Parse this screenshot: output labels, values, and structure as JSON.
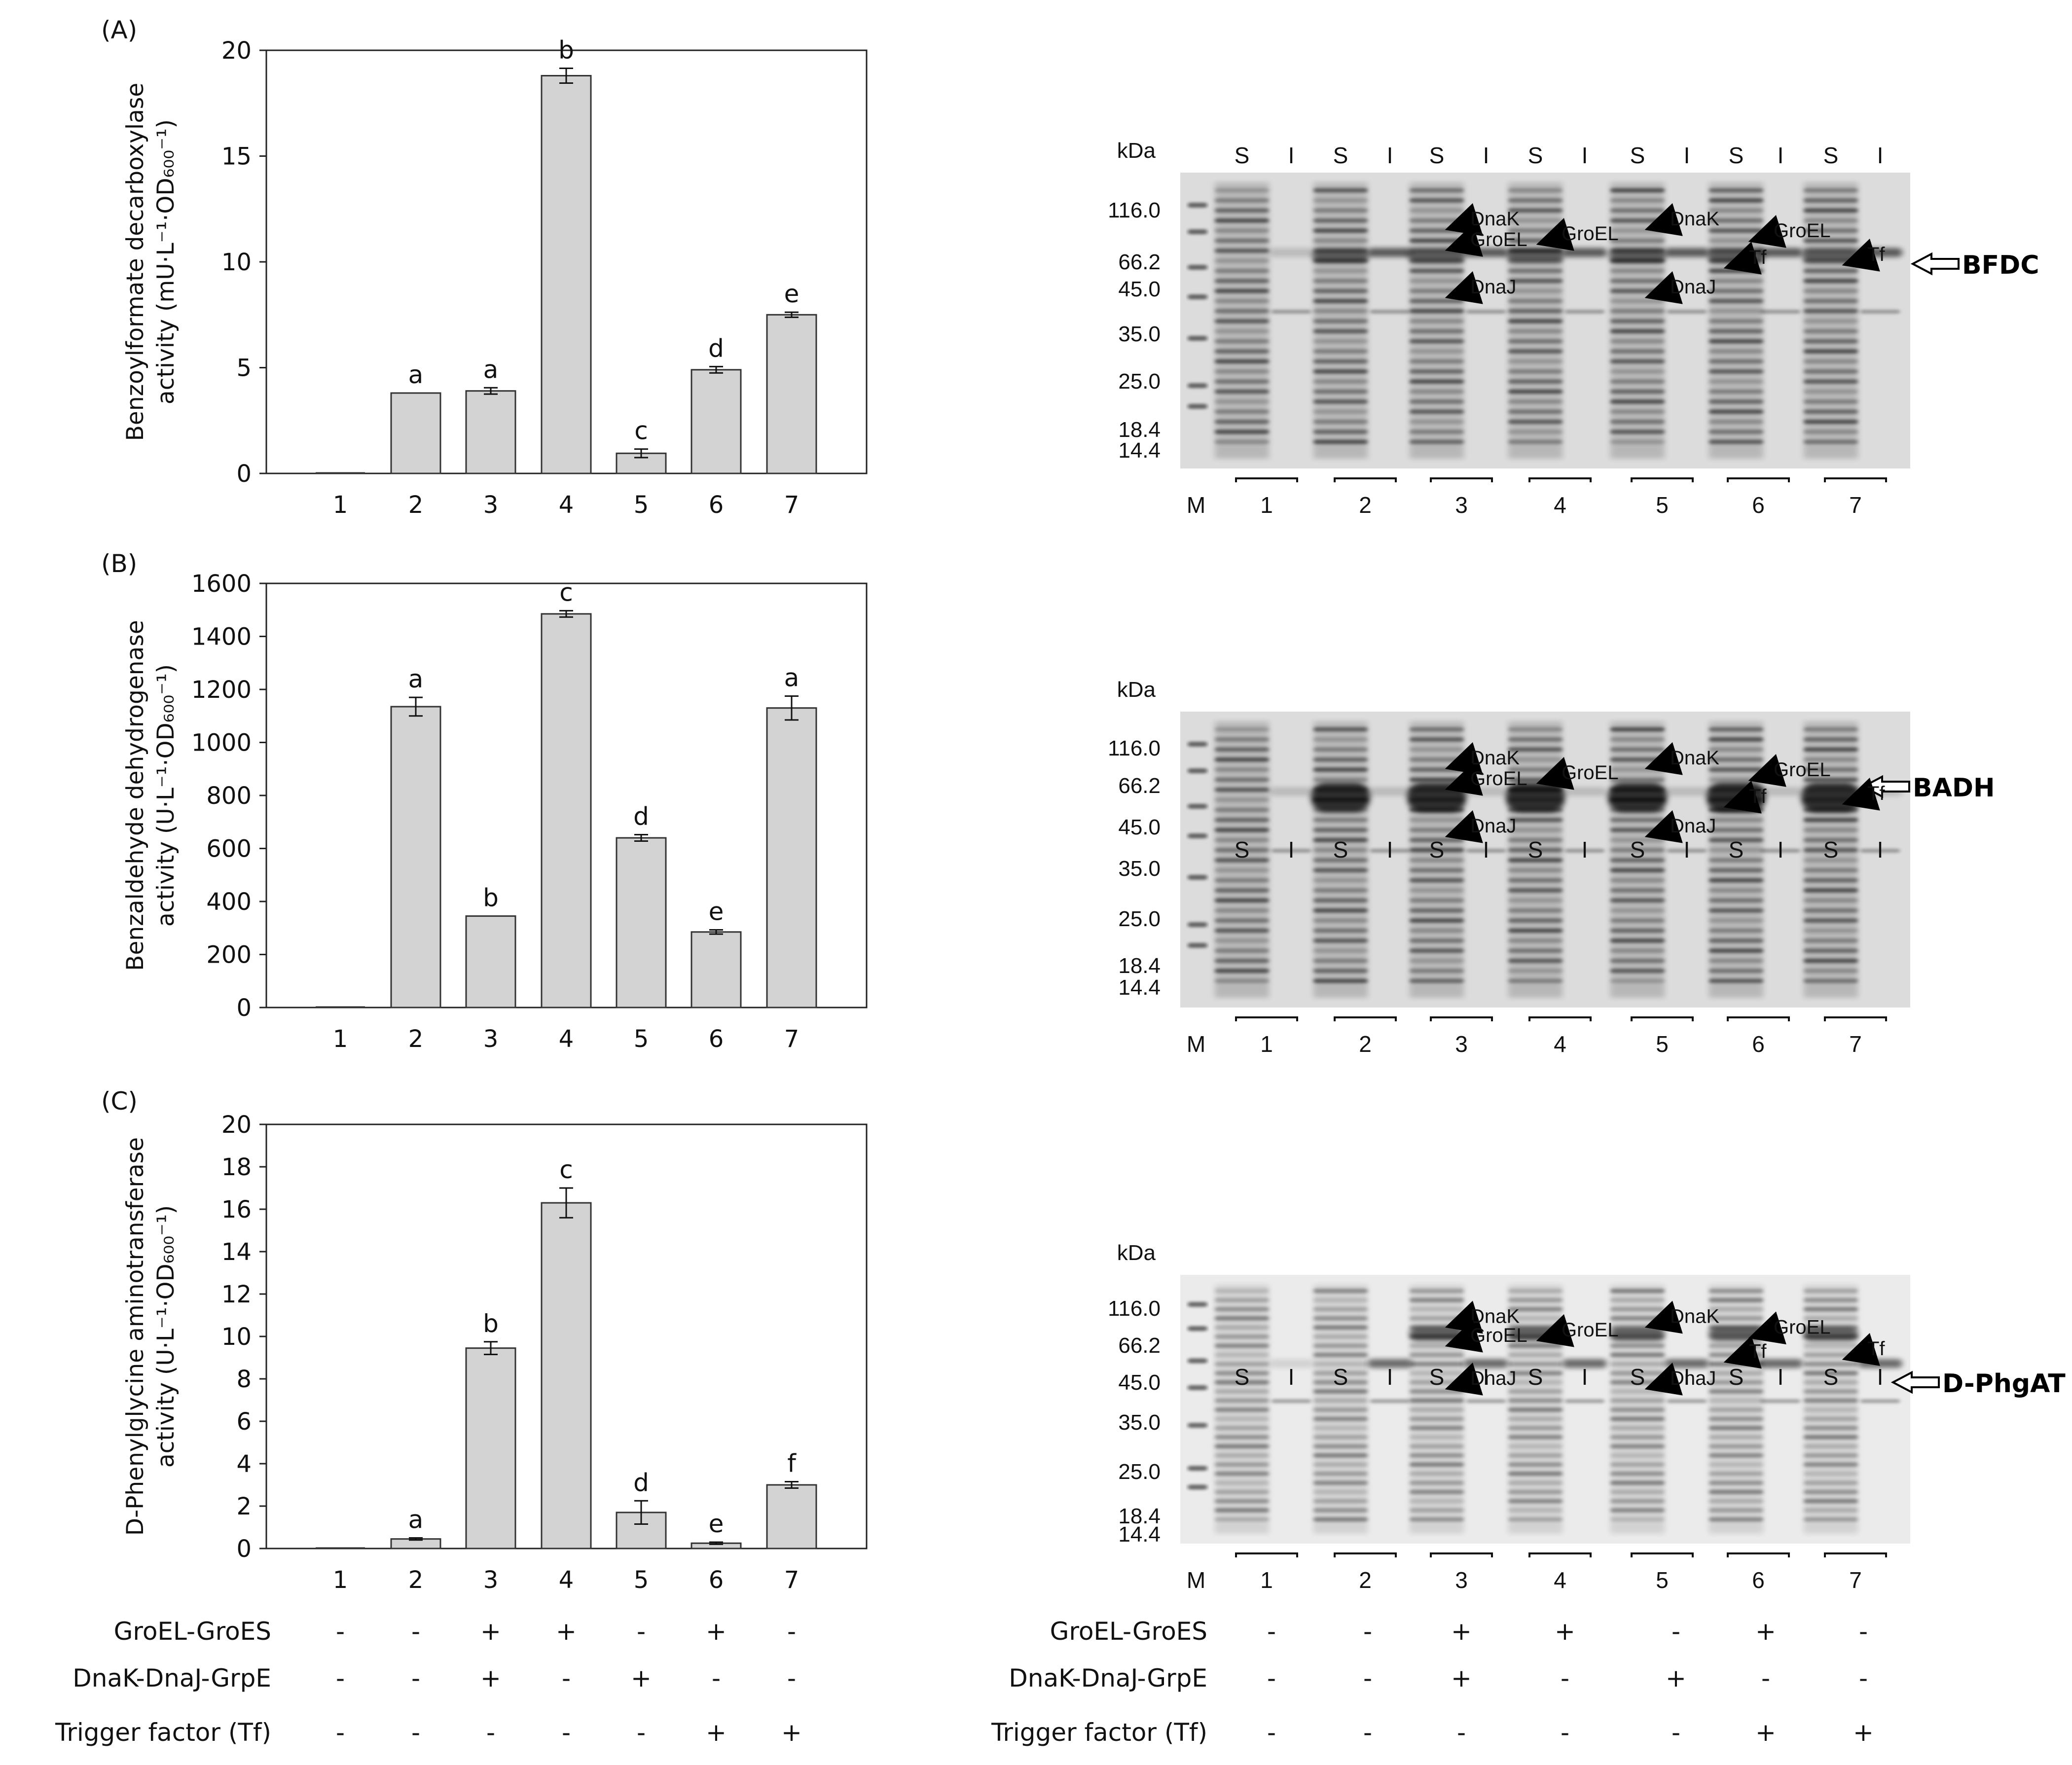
{
  "figure": {
    "condition_labels": [
      "GroEL-GroES",
      "DnaK-DnaJ-GrpE",
      "Trigger factor (Tf)"
    ],
    "condition_signs": [
      [
        "-",
        "-",
        "+",
        "+",
        "-",
        "+",
        "-"
      ],
      [
        "-",
        "-",
        "+",
        "-",
        "+",
        "-",
        "-"
      ],
      [
        "-",
        "-",
        "-",
        "-",
        "-",
        "+",
        "+"
      ]
    ]
  },
  "chart_data": [
    {
      "type": "bar",
      "panel": "(A)",
      "title": "",
      "xlabel": "",
      "ylabel_line1": "Benzoylformate decarboxylase",
      "ylabel_line2": "activity (mU·L⁻¹·OD₆₀₀⁻¹)",
      "categories": [
        "1",
        "2",
        "3",
        "4",
        "5",
        "6",
        "7"
      ],
      "values": [
        0,
        3.8,
        3.9,
        18.8,
        0.95,
        4.9,
        7.5
      ],
      "errors": [
        0,
        0,
        0.15,
        0.35,
        0.2,
        0.15,
        0.12
      ],
      "letters": [
        "",
        "a",
        "a",
        "b",
        "c",
        "d",
        "e"
      ],
      "ylim": [
        0,
        20
      ],
      "yticks": [
        0,
        5,
        10,
        15,
        20
      ],
      "ytick_labels": [
        "0",
        "5",
        "10",
        "15",
        "20"
      ]
    },
    {
      "type": "bar",
      "panel": "(B)",
      "title": "",
      "xlabel": "",
      "ylabel_line1": "Benzaldehyde dehydrogenase",
      "ylabel_line2": "activity (U·L⁻¹·OD₆₀₀⁻¹)",
      "categories": [
        "1",
        "2",
        "3",
        "4",
        "5",
        "6",
        "7"
      ],
      "values": [
        0,
        1135,
        345,
        1485,
        640,
        285,
        1130
      ],
      "errors": [
        0,
        35,
        0,
        12,
        12,
        8,
        45
      ],
      "letters": [
        "",
        "a",
        "b",
        "c",
        "d",
        "e",
        "a"
      ],
      "ylim": [
        0,
        1600
      ],
      "yticks": [
        0,
        200,
        400,
        600,
        800,
        1000,
        1200,
        1400,
        1600
      ],
      "ytick_labels": [
        "0",
        "200",
        "400",
        "600",
        "800",
        "1000",
        "1200",
        "1400",
        "1600"
      ]
    },
    {
      "type": "bar",
      "panel": "(C)",
      "title": "",
      "xlabel": "",
      "ylabel_line1": "D-Phenylglycine aminotransferase",
      "ylabel_line2": "activity (U·L⁻¹·OD₆₀₀⁻¹)",
      "categories": [
        "1",
        "2",
        "3",
        "4",
        "5",
        "6",
        "7"
      ],
      "values": [
        0,
        0.45,
        9.45,
        16.3,
        1.7,
        0.25,
        3.0
      ],
      "errors": [
        0,
        0.05,
        0.3,
        0.7,
        0.55,
        0.05,
        0.15
      ],
      "letters": [
        "",
        "a",
        "b",
        "c",
        "d",
        "e",
        "f"
      ],
      "ylim": [
        0,
        20
      ],
      "yticks": [
        0,
        2,
        4,
        6,
        8,
        10,
        12,
        14,
        16,
        18,
        20
      ],
      "ytick_labels": [
        "0",
        "2",
        "4",
        "6",
        "8",
        "10",
        "12",
        "14",
        "16",
        "18",
        "20"
      ]
    }
  ],
  "gels": [
    {
      "kda_label": "kDa",
      "markers": [
        "116.0",
        "66.2",
        "45.0",
        "35.0",
        "25.0",
        "18.4",
        "14.4"
      ],
      "lane_marker_label": "M",
      "fraction_labels": [
        "S",
        "I",
        "S",
        "I",
        "S",
        "I",
        "S",
        "I",
        "S",
        "I",
        "S",
        "I",
        "S",
        "I"
      ],
      "group_labels": [
        "1",
        "2",
        "3",
        "4",
        "5",
        "6",
        "7"
      ],
      "protein_label": "BFDC",
      "annotations": [
        "DnaK",
        "GroEL",
        "DnaJ",
        "GroEL",
        "DnaK",
        "DnaJ",
        "GroEL",
        "Tf",
        "Tf"
      ]
    },
    {
      "kda_label": "kDa",
      "markers": [
        "116.0",
        "66.2",
        "45.0",
        "35.0",
        "25.0",
        "18.4",
        "14.4"
      ],
      "lane_marker_label": "M",
      "fraction_labels": [
        "S",
        "I",
        "S",
        "I",
        "S",
        "I",
        "S",
        "I",
        "S",
        "I",
        "S",
        "I",
        "S",
        "I"
      ],
      "group_labels": [
        "1",
        "2",
        "3",
        "4",
        "5",
        "6",
        "7"
      ],
      "protein_label": "BADH",
      "annotations": [
        "DnaK",
        "GroEL",
        "DnaJ",
        "GroEL",
        "DnaK",
        "DnaJ",
        "GroEL",
        "Tf",
        "Tf"
      ]
    },
    {
      "kda_label": "kDa",
      "markers": [
        "116.0",
        "66.2",
        "45.0",
        "35.0",
        "25.0",
        "18.4",
        "14.4"
      ],
      "lane_marker_label": "M",
      "fraction_labels": [
        "S",
        "I",
        "S",
        "I",
        "S",
        "I",
        "S",
        "I",
        "S",
        "I",
        "S",
        "I",
        "S",
        "I"
      ],
      "group_labels": [
        "1",
        "2",
        "3",
        "4",
        "5",
        "6",
        "7"
      ],
      "protein_label": "D-PhgAT",
      "annotations": [
        "DnaK",
        "GroEL",
        "DnaJ",
        "GroEL",
        "DnaK",
        "DnaJ",
        "GroEL",
        "Tf",
        "Tf"
      ]
    }
  ]
}
